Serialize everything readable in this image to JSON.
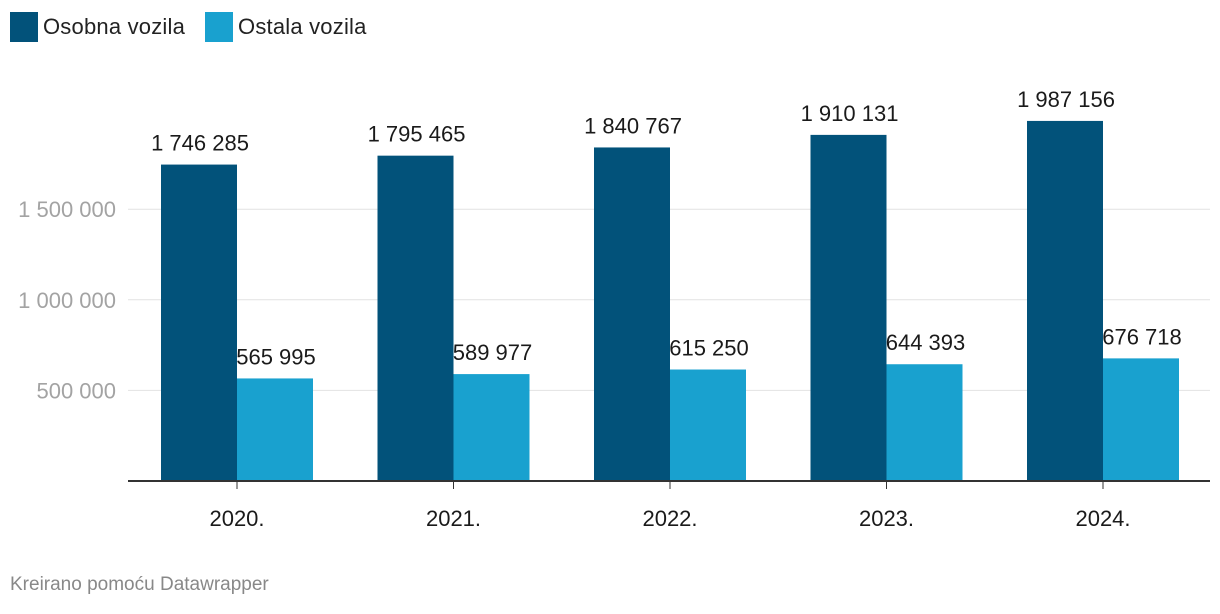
{
  "legend": {
    "items": [
      {
        "label": "Osobna vozila",
        "color": "#02527a"
      },
      {
        "label": "Ostala vozila",
        "color": "#19a1cf"
      }
    ]
  },
  "chart_data": {
    "type": "bar",
    "categories": [
      "2020.",
      "2021.",
      "2022.",
      "2023.",
      "2024."
    ],
    "series": [
      {
        "name": "Osobna vozila",
        "values": [
          1746285,
          1795465,
          1840767,
          1910131,
          1987156
        ],
        "labels": [
          "1 746 285",
          "1 795 465",
          "1 840 767",
          "1 910 131",
          "1 987 156"
        ],
        "color": "#02527a"
      },
      {
        "name": "Ostala vozila",
        "values": [
          565995,
          589977,
          615250,
          644393,
          676718
        ],
        "labels": [
          "565 995",
          "589 977",
          "615 250",
          "644 393",
          "676 718"
        ],
        "color": "#19a1cf"
      }
    ],
    "y_ticks": [
      500000,
      1000000,
      1500000
    ],
    "y_tick_labels": [
      "500 000",
      "1 000 000",
      "1 500 000"
    ],
    "ylim": [
      0,
      2000000
    ],
    "grid": true,
    "legend_position": "top-left"
  },
  "footer": {
    "credit": "Kreirano pomoću Datawrapper"
  }
}
